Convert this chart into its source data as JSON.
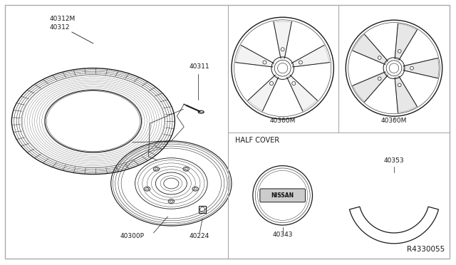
{
  "background_color": "#ffffff",
  "line_color": "#333333",
  "dark": "#1a1a1a",
  "gray": "#888888",
  "light_gray": "#aaaaaa",
  "labels": {
    "part_40312M": "40312M",
    "part_40312": "40312",
    "part_40311": "40311",
    "part_40300P": "40300P",
    "part_40224": "40224",
    "part_40300M_L": "40300M",
    "part_40300M_R": "40300M",
    "half_cover": "HALF COVER",
    "part_40343": "40343",
    "part_40353": "40353",
    "ref": "R4330055"
  },
  "fontsize_small": 6.5,
  "fontsize_ref": 7.5
}
